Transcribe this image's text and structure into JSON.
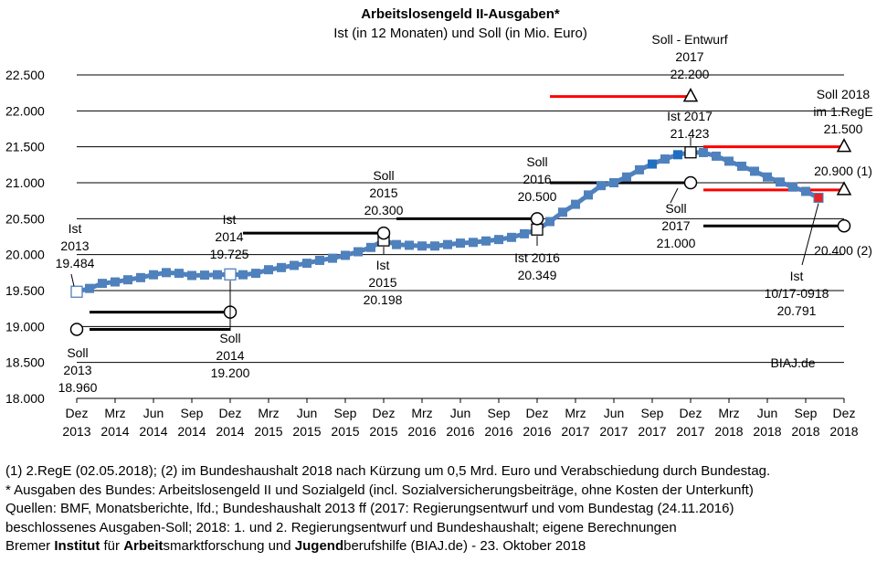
{
  "chart_data": {
    "type": "line",
    "title": "Arbeitslosengeld  II-Ausgaben*",
    "subtitle": "Ist (in 12 Monaten)  und  Soll  (in Mio.  Euro)",
    "ylim": [
      18000,
      22500
    ],
    "y_ticks": [
      "18.000",
      "18.500",
      "19.000",
      "19.500",
      "20.000",
      "20.500",
      "21.000",
      "21.500",
      "22.000",
      "22.500"
    ],
    "grid": true,
    "x_ticks": [
      [
        "Dez",
        "2013"
      ],
      [
        "Mrz",
        "2014"
      ],
      [
        "Jun",
        "2014"
      ],
      [
        "Sep",
        "2014"
      ],
      [
        "Dez",
        "2014"
      ],
      [
        "Mrz",
        "2015"
      ],
      [
        "Jun",
        "2015"
      ],
      [
        "Sep",
        "2015"
      ],
      [
        "Dez",
        "2015"
      ],
      [
        "Mrz",
        "2016"
      ],
      [
        "Jun",
        "2016"
      ],
      [
        "Sep",
        "2016"
      ],
      [
        "Dez",
        "2016"
      ],
      [
        "Mrz",
        "2017"
      ],
      [
        "Jun",
        "2017"
      ],
      [
        "Sep",
        "2017"
      ],
      [
        "Dez",
        "2017"
      ],
      [
        "Mrz",
        "2018"
      ],
      [
        "Jun",
        "2018"
      ],
      [
        "Sep",
        "2018"
      ],
      [
        "Dez",
        "2018"
      ]
    ],
    "series": [
      {
        "x_start": "Dez 2013",
        "values": [
          19484,
          19530,
          19600,
          19620,
          19650,
          19680,
          19720,
          19750,
          19740,
          19710,
          19715,
          19720,
          19725,
          19720,
          19740,
          19790,
          19820,
          19850,
          19880,
          19920,
          19950,
          19990,
          20040,
          20100,
          20198,
          20140,
          20130,
          20120,
          20120,
          20140,
          20160,
          20170,
          20190,
          20210,
          20240,
          20290,
          20349,
          20460,
          20590,
          20700,
          20830,
          20960,
          21000,
          21080,
          21180,
          21260,
          21330,
          21390,
          21423,
          21420,
          21370,
          21300,
          21230,
          21160,
          21080,
          21010,
          20940,
          20880,
          20791
        ]
      }
    ],
    "soll_lines": [
      {
        "year": "2013",
        "x_from": "Dez 2013",
        "x_to": "Dez 2014",
        "value": 18960,
        "color": "#000000"
      },
      {
        "year": "2014",
        "x_from": "Dez 2013",
        "x_to": "Dez 2014",
        "value": 19200,
        "color": "#000000"
      },
      {
        "year": "2015",
        "x_from": "Dez 2014",
        "x_to": "Dez 2015",
        "value": 20300,
        "color": "#000000"
      },
      {
        "year": "2016",
        "x_from": "Dez 2015",
        "x_to": "Dez 2016",
        "value": 20500,
        "color": "#000000"
      },
      {
        "year": "2017",
        "x_from": "Dez 2016",
        "x_to": "Dez 2017",
        "value": 21000,
        "color": "#000000"
      },
      {
        "year": "2017",
        "x_from": "Dez 2016",
        "x_to": "Dez 2017",
        "value": 22200,
        "color": "#ff0000"
      },
      {
        "year": "2018",
        "x_from": "Dez 2017",
        "x_to": "Dez 2018",
        "value": 21500,
        "color": "#ff0000"
      },
      {
        "year": "2018",
        "x_from": "Dez 2017",
        "x_to": "Dez 2018",
        "value": 20900,
        "color": "#ff0000"
      },
      {
        "year": "2018",
        "x_from": "Dez 2017",
        "x_to": "Dez 2018",
        "value": 20400,
        "color": "#000000"
      }
    ],
    "annotations": {
      "ist2013": [
        "Ist",
        "2013",
        "19.484"
      ],
      "soll2013": [
        "Soll",
        "2013",
        "18.960"
      ],
      "ist2014": [
        "Ist",
        "2014",
        "19.725"
      ],
      "soll2014": [
        "Soll",
        "2014",
        "19.200"
      ],
      "soll2015": [
        "Soll",
        "2015",
        "20.300"
      ],
      "ist2015": [
        "Ist",
        "2015",
        "20.198"
      ],
      "soll2016": [
        "Soll",
        "2016",
        "20.500"
      ],
      "ist2016": [
        "Ist 2016",
        "20.349"
      ],
      "sollentwurf2017": [
        "Soll - Entwurf",
        "2017",
        "22.200"
      ],
      "ist2017": [
        "Ist 2017",
        "21.423"
      ],
      "soll2017": [
        "Soll",
        "2017",
        "21.000"
      ],
      "soll2018": [
        "Soll  2018",
        "im 1.RegE",
        "21.500"
      ],
      "s20900": "20.900  (1)",
      "s20400": "20.400  (2)",
      "ist1017": [
        "Ist",
        "10/17-0918",
        "20.791"
      ],
      "source": "BIAJ.de"
    },
    "colors": {
      "series": "#4f81bd",
      "series_dark": "#1f6fc0",
      "soll": "#000000",
      "soll_entwurf": "#ff0000",
      "marker_red": "#e0252b"
    }
  },
  "footnotes": {
    "line1": "(1) 2.RegE  (02.05.2018);  (2) im  Bundeshaushalt  2018  nach  Kürzung  um  0,5  Mrd.  Euro  und  Verabschiedung  durch  Bundestag.",
    "line2": "* Ausgaben  des  Bundes:  Arbeitslosengeld  II  und  Sozialgeld  (incl.  Sozialversicherungsbeiträge,  ohne  Kosten  der  Unterkunft)",
    "line3": "Quellen:  BMF,  Monatsberichte,  lfd.;  Bundeshaushalt  2013  ff  (2017:  Regierungsentwurf  und  vom  Bundestag  (24.11.2016)",
    "line4": "beschlossenes  Ausgaben-Soll;  2018:  1.  und  2.  Regierungsentwurf  und  Bundeshaushalt;  eigene  Berechnungen",
    "line5_a": "Bremer ",
    "line5_b": "Institut",
    "line5_c": " für ",
    "line5_d": "Arbeit",
    "line5_e": "smarktforschung  und ",
    "line5_f": "Jugend",
    "line5_g": "berufshilfe  (BIAJ.de) - 23.  Oktober  2018"
  }
}
